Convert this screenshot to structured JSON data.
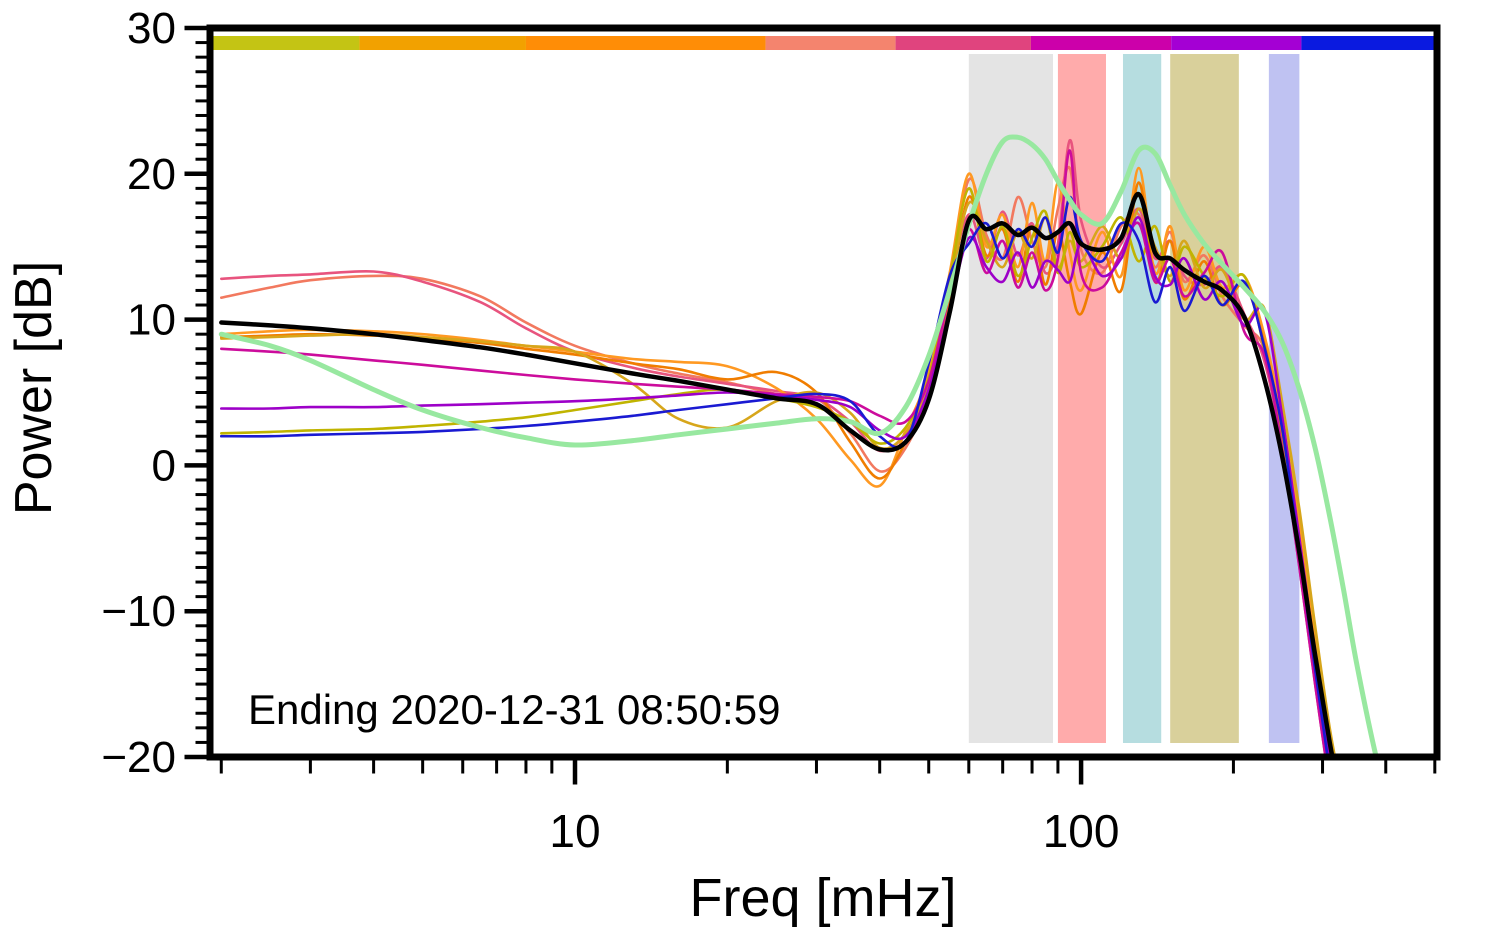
{
  "chart_data": {
    "type": "line",
    "title": "",
    "xlabel": "Freq [mHz]",
    "ylabel": "Power [dB]",
    "annotation": "Ending 2020-12-31 08:50:59",
    "xscale": "log",
    "xlim": [
      1.9,
      505
    ],
    "ylim": [
      -20,
      30
    ],
    "grid": false,
    "legend": "none",
    "yticks_major": [
      -20,
      -10,
      0,
      10,
      20,
      30
    ],
    "ytick_labels": [
      "−20",
      "−10",
      "0",
      "10",
      "20",
      "30"
    ],
    "ytick_minor_step": 1,
    "xticks_major": [
      10,
      100
    ],
    "xtick_labels": [
      "10",
      "100"
    ],
    "xticks_minor": [
      2,
      3,
      4,
      5,
      6,
      7,
      8,
      9,
      20,
      30,
      40,
      50,
      60,
      70,
      80,
      90,
      200,
      300,
      400,
      500
    ],
    "bands": [
      {
        "name": "band-gray",
        "x0": 60,
        "x1": 88,
        "color": "#e4e4e4"
      },
      {
        "name": "band-salmon",
        "x0": 90,
        "x1": 112,
        "color": "#ffabab"
      },
      {
        "name": "band-teal",
        "x0": 121,
        "x1": 144,
        "color": "#b6dde0"
      },
      {
        "name": "band-khaki",
        "x0": 150,
        "x1": 205,
        "color": "#d9d09b"
      },
      {
        "name": "band-lavender",
        "x0": 235,
        "x1": 270,
        "color": "#bfc2f2"
      }
    ],
    "top_colorbar": [
      {
        "x0": 1.9,
        "x1": 3.75,
        "color": "#c4c414"
      },
      {
        "x0": 3.75,
        "x1": 8,
        "color": "#f2a100"
      },
      {
        "x0": 8,
        "x1": 23.8,
        "color": "#ff8d06"
      },
      {
        "x0": 23.8,
        "x1": 43,
        "color": "#f4846e"
      },
      {
        "x0": 43,
        "x1": 79.6,
        "color": "#e0447e"
      },
      {
        "x0": 79.6,
        "x1": 150.7,
        "color": "#cc00aa"
      },
      {
        "x0": 150.7,
        "x1": 272.5,
        "color": "#a400d4"
      },
      {
        "x0": 272.5,
        "x1": 505,
        "color": "#0a1ae0"
      }
    ],
    "x": [
      2,
      2.5,
      3,
      4,
      5,
      6.5,
      8,
      10,
      13,
      16,
      20,
      25,
      30,
      35,
      40,
      45,
      50,
      55,
      60,
      65,
      70,
      75,
      80,
      85,
      90,
      95,
      100,
      110,
      120,
      130,
      140,
      150,
      160,
      175,
      190,
      210,
      230,
      250,
      270,
      290,
      310,
      330,
      350,
      380,
      410
    ],
    "series": [
      {
        "name": "spectrum-coral",
        "color": "#f2795f",
        "width": 2.6,
        "values": [
          11.5,
          12.2,
          12.7,
          13.0,
          12.8,
          11.6,
          9.8,
          8.2,
          7.0,
          6.3,
          5.7,
          4.9,
          4.6,
          2.2,
          -0.4,
          1.2,
          5.0,
          12.0,
          19.6,
          15.8,
          14.2,
          18.4,
          15.4,
          13.6,
          17.6,
          20.4,
          14.8,
          13.2,
          16.4,
          17.2,
          13.6,
          16.0,
          12.6,
          14.4,
          11.6,
          9.6,
          8.0,
          2.0,
          -6.0,
          -14.0,
          -21.0,
          null,
          null,
          null,
          null
        ]
      },
      {
        "name": "spectrum-crimson",
        "color": "#e8547e",
        "width": 2.6,
        "values": [
          12.8,
          13.0,
          13.1,
          13.3,
          12.6,
          11.2,
          9.4,
          7.8,
          6.7,
          6.1,
          5.6,
          5.1,
          4.6,
          3.0,
          1.0,
          2.2,
          5.6,
          12.5,
          17.2,
          14.2,
          17.4,
          14.4,
          16.6,
          13.2,
          15.2,
          22.3,
          16.8,
          13.6,
          15.2,
          17.6,
          14.2,
          15.4,
          13.0,
          12.4,
          13.6,
          10.4,
          7.2,
          1.2,
          -7.0,
          -15.0,
          -22.0,
          null,
          null,
          null,
          null
        ]
      },
      {
        "name": "spectrum-orange",
        "color": "#ff9922",
        "width": 2.6,
        "values": [
          9.0,
          9.2,
          9.3,
          9.2,
          9.0,
          8.6,
          8.2,
          7.8,
          7.3,
          7.1,
          6.8,
          5.3,
          3.2,
          0.4,
          -1.4,
          2.4,
          6.4,
          13.2,
          20.0,
          15.0,
          17.2,
          13.6,
          18.0,
          14.0,
          19.4,
          14.6,
          12.0,
          16.0,
          13.0,
          20.4,
          13.2,
          16.4,
          12.0,
          15.0,
          12.2,
          13.0,
          9.0,
          3.0,
          -4.0,
          -12.0,
          -19.0,
          -24.0,
          null,
          null,
          null
        ]
      },
      {
        "name": "spectrum-dark-orange",
        "color": "#f07d00",
        "width": 2.6,
        "values": [
          8.8,
          8.9,
          9.0,
          8.9,
          8.7,
          8.4,
          8.0,
          7.6,
          7.0,
          6.6,
          5.9,
          6.4,
          5.0,
          1.6,
          -0.9,
          1.6,
          5.2,
          11.4,
          18.4,
          14.4,
          16.2,
          12.6,
          16.4,
          12.4,
          16.0,
          12.6,
          10.4,
          14.6,
          12.0,
          19.4,
          12.6,
          15.4,
          11.4,
          14.0,
          11.0,
          12.4,
          8.4,
          2.2,
          -5.0,
          -13.0,
          -20.0,
          -24.5,
          null,
          null,
          null
        ]
      },
      {
        "name": "spectrum-goldenrod",
        "color": "#d7a61b",
        "width": 2.6,
        "values": [
          8.7,
          8.8,
          8.9,
          9.0,
          8.8,
          8.5,
          8.2,
          7.8,
          5.6,
          3.2,
          2.6,
          4.4,
          5.0,
          3.6,
          1.2,
          2.2,
          5.8,
          12.2,
          18.0,
          15.4,
          13.6,
          16.0,
          14.2,
          17.0,
          13.6,
          15.4,
          14.0,
          16.4,
          14.2,
          17.6,
          15.0,
          13.0,
          15.4,
          12.2,
          13.4,
          10.0,
          10.8,
          4.2,
          -3.0,
          -11.0,
          -18.0,
          -23.0,
          null,
          null,
          null
        ]
      },
      {
        "name": "spectrum-olive",
        "color": "#c0b400",
        "width": 2.6,
        "values": [
          2.2,
          2.3,
          2.4,
          2.5,
          2.7,
          3.0,
          3.3,
          3.8,
          4.4,
          4.9,
          5.2,
          4.6,
          4.0,
          3.0,
          1.5,
          2.6,
          6.0,
          12.8,
          19.0,
          14.0,
          16.4,
          13.0,
          15.6,
          17.4,
          13.2,
          16.0,
          13.6,
          15.0,
          17.0,
          14.0,
          16.4,
          12.6,
          15.0,
          13.0,
          11.6,
          13.0,
          8.0,
          1.2,
          -6.0,
          -14.0,
          -21.0,
          null,
          null,
          null,
          null
        ]
      },
      {
        "name": "spectrum-magenta",
        "color": "#cc0c9c",
        "width": 2.6,
        "values": [
          8.0,
          7.8,
          7.6,
          7.2,
          6.9,
          6.5,
          6.2,
          5.9,
          5.6,
          5.4,
          5.2,
          4.9,
          4.7,
          4.4,
          3.4,
          3.0,
          5.8,
          11.8,
          16.2,
          13.2,
          15.4,
          12.2,
          14.6,
          12.0,
          14.2,
          21.6,
          13.2,
          12.2,
          14.6,
          16.6,
          12.6,
          14.2,
          11.6,
          13.2,
          14.6,
          9.2,
          7.6,
          1.0,
          -7.0,
          -15.0,
          -22.0,
          null,
          null,
          null,
          null
        ]
      },
      {
        "name": "spectrum-purple",
        "color": "#9d00c8",
        "width": 2.6,
        "values": [
          3.9,
          3.9,
          4.0,
          4.0,
          4.1,
          4.2,
          4.3,
          4.4,
          4.6,
          4.8,
          5.0,
          4.8,
          4.5,
          4.0,
          2.4,
          2.0,
          5.2,
          10.8,
          15.6,
          13.6,
          12.6,
          14.6,
          12.2,
          14.0,
          13.4,
          12.6,
          15.2,
          13.0,
          14.2,
          17.0,
          13.0,
          12.4,
          14.2,
          11.4,
          12.6,
          9.6,
          10.6,
          3.2,
          -5.0,
          -13.0,
          -20.0,
          -24.0,
          null,
          null,
          null
        ]
      },
      {
        "name": "spectrum-blue",
        "color": "#1a1ad2",
        "width": 2.6,
        "values": [
          2.0,
          2.0,
          2.1,
          2.2,
          2.3,
          2.5,
          2.7,
          3.0,
          3.4,
          3.8,
          4.2,
          4.6,
          4.9,
          4.4,
          2.0,
          1.6,
          7.0,
          13.0,
          15.2,
          16.6,
          14.2,
          16.2,
          15.0,
          17.0,
          14.6,
          18.4,
          15.4,
          14.0,
          16.6,
          15.4,
          11.2,
          13.6,
          10.6,
          13.0,
          11.0,
          12.6,
          8.2,
          2.4,
          -6.0,
          -14.0,
          -21.0,
          null,
          null,
          null,
          null
        ]
      },
      {
        "name": "spectrum-light-green",
        "color": "#98e8a0",
        "width": 5,
        "values": [
          9.0,
          8.2,
          7.2,
          5.2,
          3.8,
          2.6,
          1.9,
          1.4,
          1.7,
          2.1,
          2.5,
          2.9,
          3.2,
          3.0,
          2.2,
          4.0,
          7.5,
          12.0,
          16.5,
          20.0,
          22.2,
          22.5,
          22.0,
          21.0,
          19.5,
          18.2,
          17.2,
          16.6,
          18.8,
          21.6,
          21.4,
          19.2,
          17.2,
          15.2,
          13.8,
          12.2,
          10.6,
          8.4,
          5.2,
          1.2,
          -3.5,
          -8.5,
          -13.5,
          -19.5,
          -24.0
        ]
      },
      {
        "name": "spectrum-mean-black",
        "color": "#000000",
        "width": 4.5,
        "values": [
          9.8,
          9.6,
          9.4,
          9.0,
          8.6,
          8.1,
          7.6,
          7.0,
          6.3,
          5.8,
          5.2,
          4.6,
          4.2,
          2.4,
          1.1,
          1.6,
          4.5,
          10.5,
          16.8,
          16.2,
          16.6,
          15.8,
          16.3,
          15.6,
          16.0,
          16.6,
          15.2,
          14.8,
          15.6,
          18.6,
          14.6,
          14.2,
          13.4,
          12.6,
          12.0,
          10.2,
          6.0,
          0.5,
          -6.0,
          -13.0,
          -19.0,
          -24.0,
          null,
          null,
          null
        ]
      }
    ],
    "axis_color": "#000000"
  }
}
